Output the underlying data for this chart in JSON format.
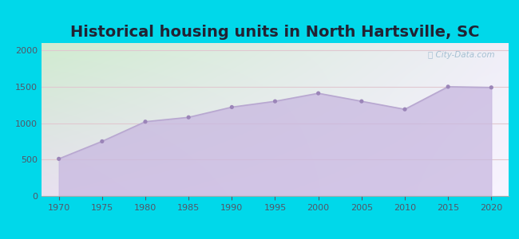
{
  "title": "Historical housing units in North Hartsville, SC",
  "years": [
    1970,
    1975,
    1980,
    1985,
    1990,
    1995,
    2000,
    2005,
    2010,
    2015,
    2020
  ],
  "values": [
    510,
    750,
    1020,
    1080,
    1220,
    1300,
    1410,
    1300,
    1190,
    1500,
    1490
  ],
  "ylim": [
    0,
    2100
  ],
  "yticks": [
    0,
    500,
    1000,
    1500,
    2000
  ],
  "xticks": [
    1970,
    1975,
    1980,
    1985,
    1990,
    1995,
    2000,
    2005,
    2010,
    2015,
    2020
  ],
  "line_color": "#b8a8d0",
  "fill_color": "#c8b8e0",
  "fill_alpha": 0.75,
  "marker_color": "#9b85b8",
  "bg_outer": "#00d8ea",
  "bg_plot_grad_top_left": "#d8f0d8",
  "bg_plot_top_right": "#f5f5ff",
  "title_fontsize": 14,
  "title_color": "#222233",
  "watermark": "ⓘ City-Data.com",
  "grid_color": "#e0c8d0",
  "tick_color": "#555566",
  "tick_fontsize": 8
}
